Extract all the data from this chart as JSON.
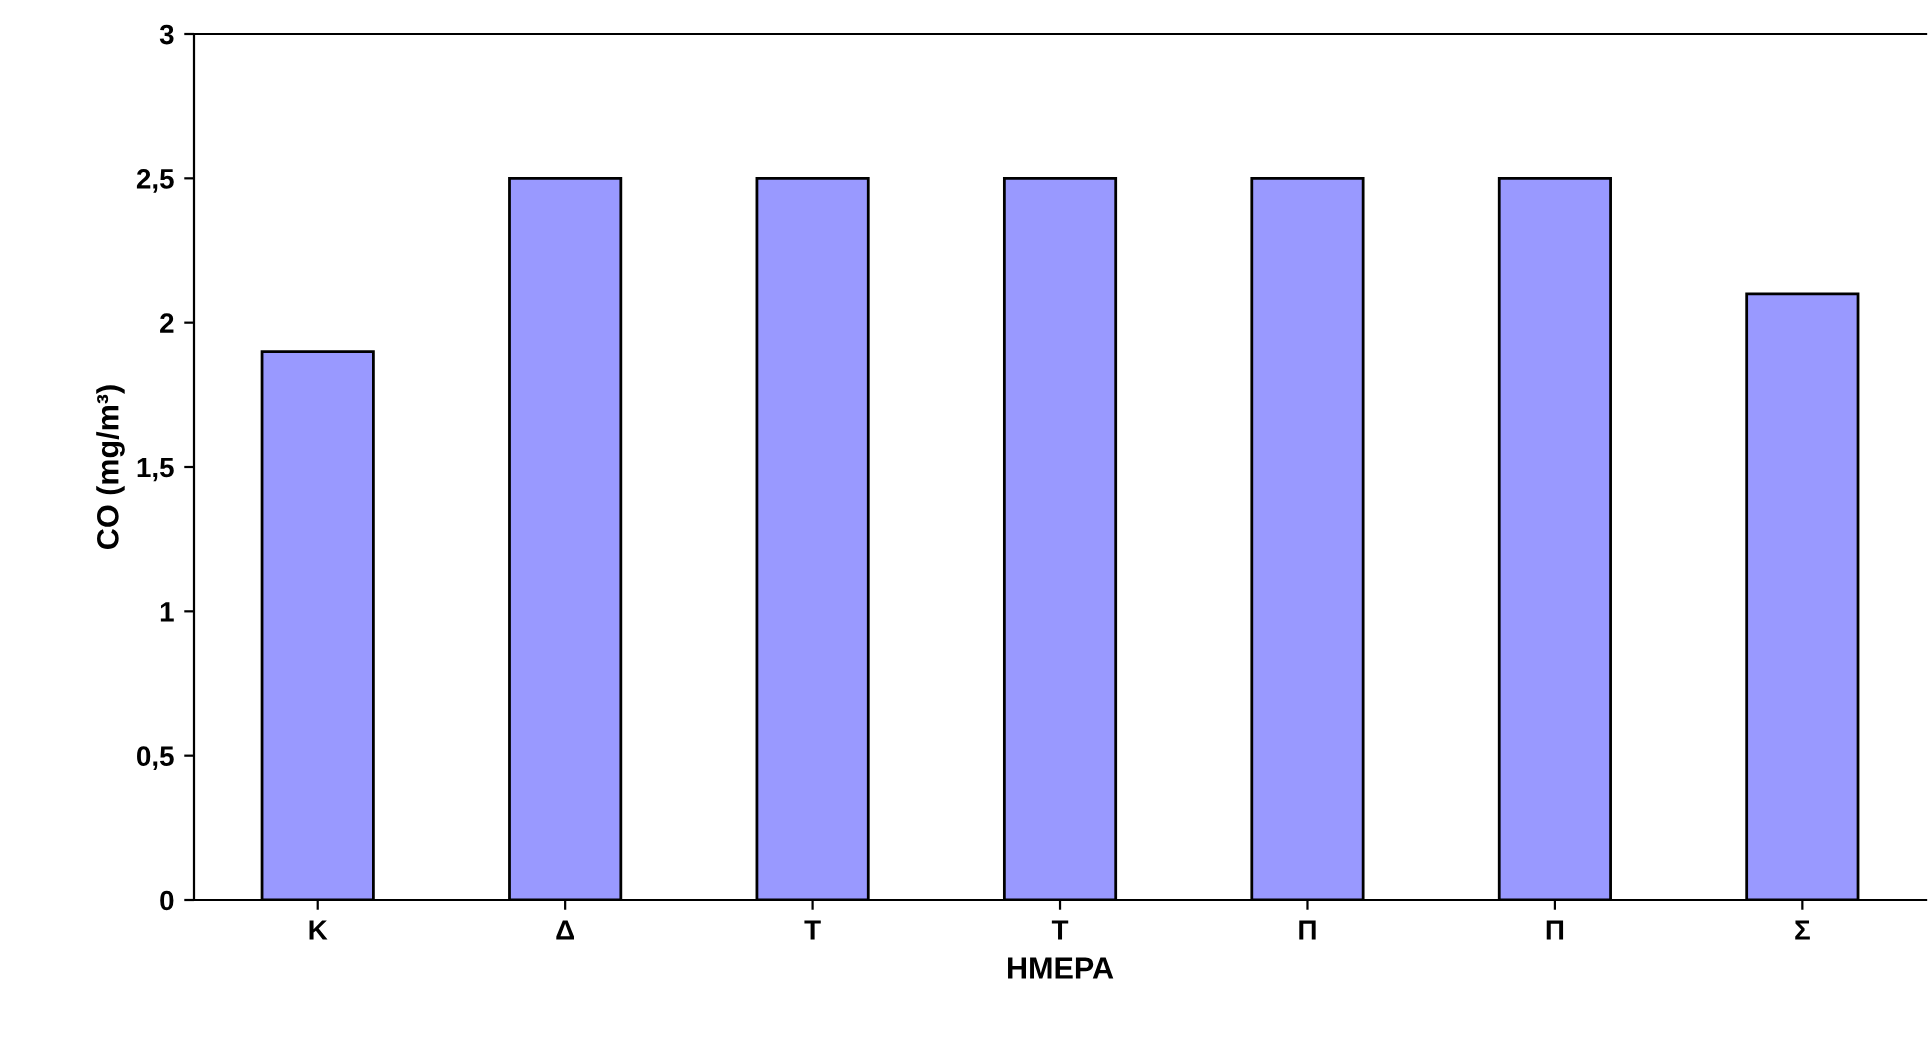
{
  "chart_data": {
    "type": "bar",
    "xlabel": "ΗΜΕΡΑ",
    "ylabel": "CO (mg/m³)",
    "categories": [
      "Κ",
      "Δ",
      "Τ",
      "Τ",
      "Π",
      "Π",
      "Σ"
    ],
    "values": [
      1.9,
      2.5,
      2.5,
      2.5,
      2.5,
      2.5,
      2.1
    ],
    "color": "#9999ff",
    "ylim": [
      0,
      3
    ],
    "yticks": [
      0,
      {
        "value": 0.5,
        "label": "0,5"
      },
      1,
      {
        "value": 1.5,
        "label": "1,5"
      },
      2,
      {
        "value": 2.5,
        "label": "2,5"
      },
      3
    ],
    "grid": false
  }
}
